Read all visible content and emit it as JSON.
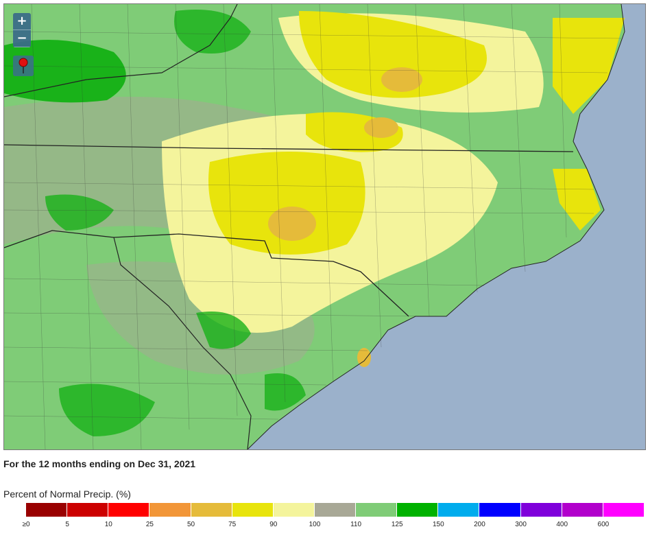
{
  "map": {
    "zoom_in_label": "+",
    "zoom_out_label": "−",
    "marker_icon": "map-pin-icon",
    "colors": {
      "ocean": "#9bb1cb",
      "green_light": "#7fcc77",
      "green_dark": "#19b219",
      "gray": "#a8a896",
      "yellow_light": "#f4f49c",
      "yellow": "#e8e40c",
      "orange_light": "#e5b93a"
    }
  },
  "caption": "For the 12 months ending on Dec 31, 2021",
  "legend": {
    "title": "Percent of Normal Precip. (%)",
    "colors": [
      "#990000",
      "#cc0000",
      "#ff0000",
      "#f29638",
      "#e5bb3a",
      "#e8e40c",
      "#f4f49c",
      "#a8a896",
      "#7fcc77",
      "#00b200",
      "#00aced",
      "#0000ff",
      "#7f00db",
      "#b200cc",
      "#ff00ff"
    ],
    "ticks": [
      "≥0",
      "5",
      "10",
      "25",
      "50",
      "75",
      "90",
      "100",
      "110",
      "125",
      "150",
      "200",
      "300",
      "400",
      "600"
    ]
  }
}
